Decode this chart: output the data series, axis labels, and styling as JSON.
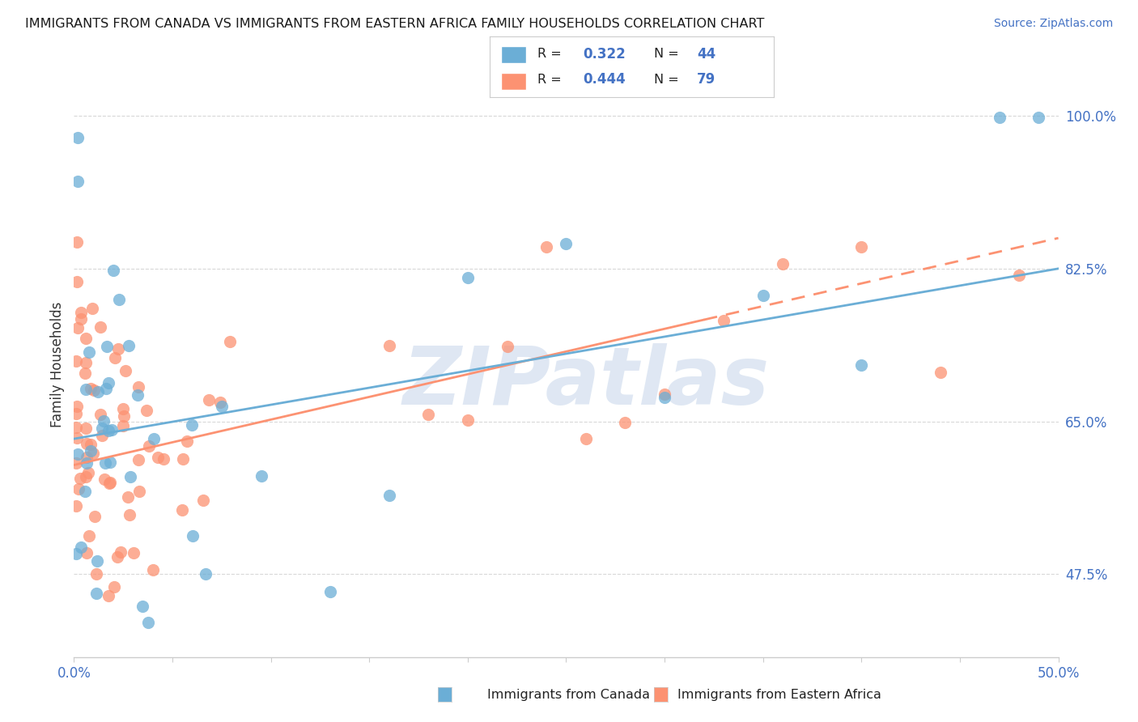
{
  "title": "IMMIGRANTS FROM CANADA VS IMMIGRANTS FROM EASTERN AFRICA FAMILY HOUSEHOLDS CORRELATION CHART",
  "source": "Source: ZipAtlas.com",
  "ylabel": "Family Households",
  "ytick_labels": [
    "100.0%",
    "82.5%",
    "65.0%",
    "47.5%"
  ],
  "ytick_values": [
    1.0,
    0.825,
    0.65,
    0.475
  ],
  "xlim": [
    0.0,
    0.5
  ],
  "ylim": [
    0.38,
    1.05
  ],
  "canada_color": "#6baed6",
  "eastern_africa_color": "#fc9272",
  "canada_R": 0.322,
  "canada_N": 44,
  "ea_R": 0.444,
  "ea_N": 79,
  "watermark": "ZIPatlas",
  "background_color": "#ffffff",
  "grid_color": "#d8d8d8",
  "legend_border_color": "#cccccc",
  "axis_color": "#cccccc",
  "label_color": "#4472c4",
  "text_color": "#333333",
  "canada_line_y0": 0.63,
  "canada_line_y1": 0.825,
  "ea_line_y0": 0.6,
  "ea_line_y1": 0.86,
  "ea_line_solid_end": 0.32
}
